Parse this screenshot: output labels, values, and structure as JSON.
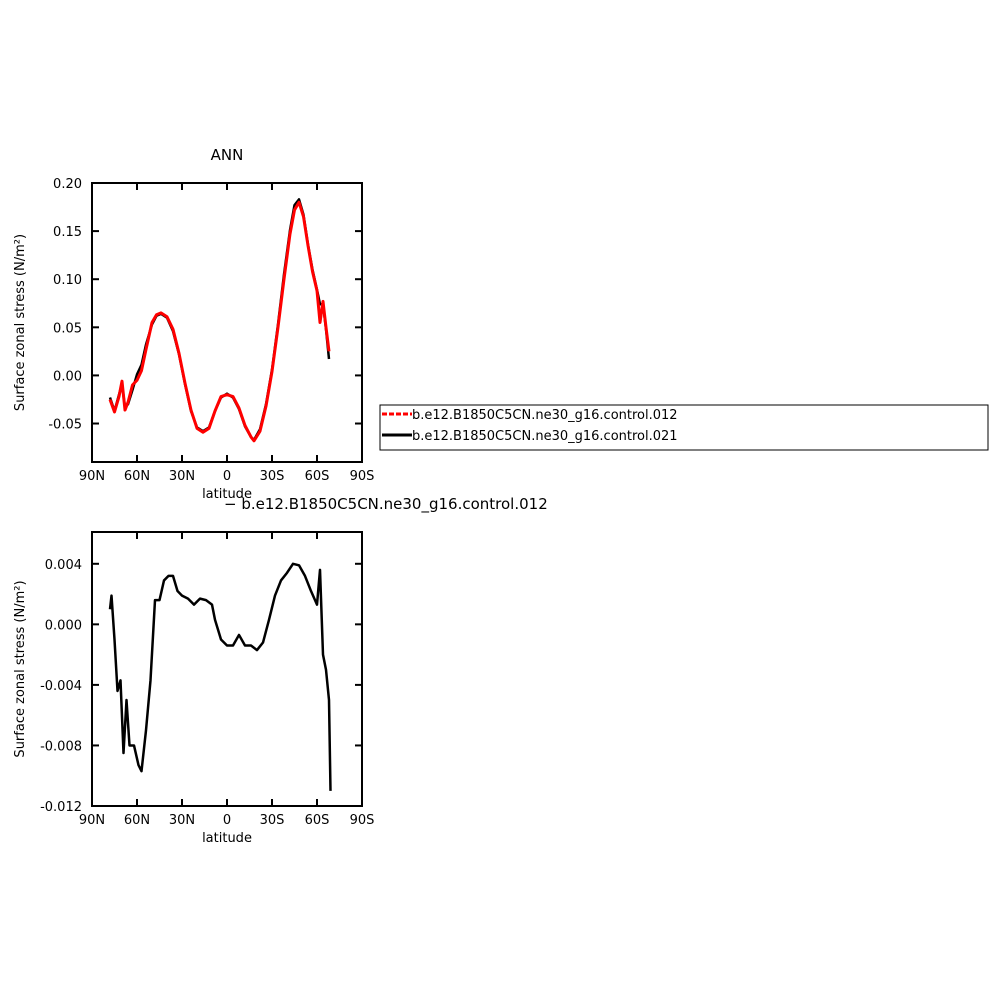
{
  "chart_data": [
    {
      "type": "line",
      "title": "ANN",
      "xlabel": "latitude",
      "ylabel": "Surface zonal stress (N/m²)",
      "x": [
        78,
        75,
        72,
        70,
        68,
        66,
        63,
        60,
        57,
        54,
        50,
        47,
        44,
        40,
        36,
        32,
        28,
        24,
        20,
        16,
        12,
        8,
        4,
        0,
        -4,
        -8,
        -12,
        -16,
        -18,
        -22,
        -26,
        -30,
        -34,
        -38,
        -42,
        -45,
        -48,
        -51,
        -54,
        -57,
        -60,
        -62,
        -64,
        -66,
        -68
      ],
      "series": [
        {
          "name": "b.e12.B1850C5CN.ne30_g16.control.012",
          "color": "#ff0000",
          "values": [
            -0.025,
            -0.038,
            -0.022,
            -0.006,
            -0.036,
            -0.028,
            -0.01,
            -0.005,
            0.005,
            0.027,
            0.055,
            0.063,
            0.065,
            0.061,
            0.048,
            0.023,
            -0.008,
            -0.036,
            -0.055,
            -0.059,
            -0.055,
            -0.037,
            -0.022,
            -0.02,
            -0.022,
            -0.034,
            -0.052,
            -0.064,
            -0.068,
            -0.058,
            -0.032,
            0.004,
            0.05,
            0.1,
            0.147,
            0.172,
            0.18,
            0.165,
            0.135,
            0.108,
            0.088,
            0.055,
            0.077,
            0.05,
            0.025
          ]
        },
        {
          "name": "b.e12.B1850C5CN.ne30_g16.control.021",
          "color": "#000000",
          "values": [
            -0.023,
            -0.037,
            -0.02,
            -0.009,
            -0.033,
            -0.03,
            -0.015,
            0.001,
            0.011,
            0.032,
            0.053,
            0.062,
            0.064,
            0.06,
            0.046,
            0.022,
            -0.009,
            -0.037,
            -0.054,
            -0.058,
            -0.054,
            -0.037,
            -0.023,
            -0.019,
            -0.023,
            -0.035,
            -0.053,
            -0.064,
            -0.067,
            -0.056,
            -0.03,
            0.006,
            0.053,
            0.105,
            0.151,
            0.177,
            0.183,
            0.167,
            0.136,
            0.11,
            0.089,
            0.074,
            0.074,
            0.048,
            0.017
          ]
        }
      ],
      "xlim": [
        90,
        -90
      ],
      "xticks": [
        {
          "value": 90,
          "label": "90N"
        },
        {
          "value": 60,
          "label": "60N"
        },
        {
          "value": 30,
          "label": "30N"
        },
        0,
        {
          "value": -30,
          "label": "30S"
        },
        {
          "value": -60,
          "label": "60S"
        },
        {
          "value": -90,
          "label": "90S"
        }
      ],
      "ylim": [
        -0.09,
        0.2
      ],
      "yticks": [
        {
          "value": 0.2,
          "label": "0.20"
        },
        0.15,
        {
          "value": 0.1,
          "label": "0.10"
        },
        0.05,
        {
          "value": 0,
          "label": "0.00"
        },
        -0.05
      ],
      "legend": "right"
    },
    {
      "type": "line",
      "title": "− b.e12.B1850C5CN.ne30_g16.control.012",
      "xlabel": "latitude",
      "ylabel": "Surface zonal stress (N/m²)",
      "x": [
        78,
        77,
        75,
        73,
        71,
        69,
        67,
        65,
        62,
        59,
        57,
        54,
        51,
        48,
        45,
        42,
        39,
        36,
        33,
        30,
        26,
        22,
        18,
        14,
        10,
        8,
        4,
        0,
        -4,
        -8,
        -12,
        -16,
        -20,
        -24,
        -28,
        -32,
        -36,
        -40,
        -44,
        -48,
        -52,
        -56,
        -60,
        -62,
        -64,
        -66,
        -68,
        -69
      ],
      "values": [
        0.001,
        0.0019,
        -0.001,
        -0.0044,
        -0.0037,
        -0.0085,
        -0.005,
        -0.008,
        -0.008,
        -0.0093,
        -0.0097,
        -0.007,
        -0.0037,
        0.0016,
        0.0016,
        0.0029,
        0.0032,
        0.0032,
        0.0022,
        0.0019,
        0.0017,
        0.0013,
        0.0017,
        0.0016,
        0.0013,
        0.0003,
        -0.001,
        -0.0014,
        -0.0014,
        -0.0007,
        -0.0014,
        -0.0014,
        -0.0017,
        -0.0012,
        0.0003,
        0.0019,
        0.0029,
        0.0034,
        0.004,
        0.0039,
        0.0032,
        0.0022,
        0.0013,
        0.0036,
        -0.002,
        -0.003,
        -0.005,
        -0.011
      ],
      "color": "#000000",
      "xlim": [
        90,
        -90
      ],
      "xticks": [
        {
          "value": 90,
          "label": "90N"
        },
        {
          "value": 60,
          "label": "60N"
        },
        {
          "value": 30,
          "label": "30N"
        },
        0,
        {
          "value": -30,
          "label": "30S"
        },
        {
          "value": -60,
          "label": "60S"
        },
        {
          "value": -90,
          "label": "90S"
        }
      ],
      "ylim": [
        -0.012,
        0.0061
      ],
      "yticks": [
        0.004,
        {
          "value": 0,
          "label": "0.000"
        },
        -0.004,
        -0.008,
        -0.012
      ]
    }
  ]
}
